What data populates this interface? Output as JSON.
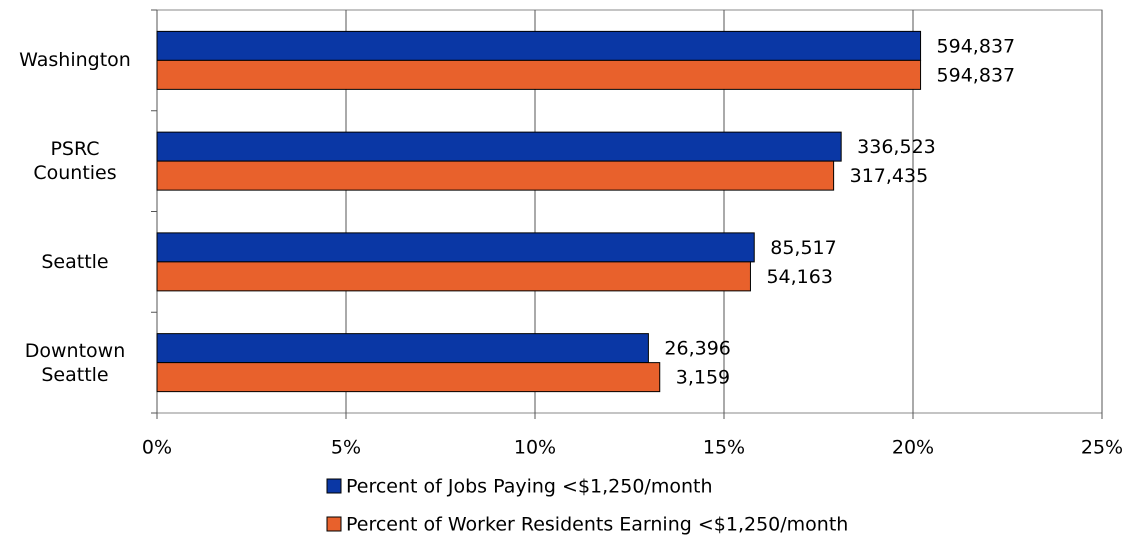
{
  "chart_data": {
    "type": "hbar",
    "categories": [
      "Washington",
      "PSRC Counties",
      "Seattle",
      "Downtown Seattle"
    ],
    "series": [
      {
        "name": "Percent of Jobs Paying <$1,250/month",
        "color": "#0a37a5",
        "values": [
          20.2,
          18.1,
          15.8,
          13.0
        ],
        "labels": [
          "594,837",
          "336,523",
          "85,517",
          "26,396"
        ]
      },
      {
        "name": "Percent of Worker Residents Earning <$1,250/month",
        "color": "#e8612c",
        "values": [
          20.2,
          17.9,
          15.7,
          13.3
        ],
        "labels": [
          "594,837",
          "317,435",
          "54,163",
          "3,159"
        ]
      }
    ],
    "xlim": [
      0,
      25
    ],
    "xticks": [
      {
        "value": 0,
        "label": "0%"
      },
      {
        "value": 5,
        "label": "5%"
      },
      {
        "value": 10,
        "label": "10%"
      },
      {
        "value": 15,
        "label": "15%"
      },
      {
        "value": 20,
        "label": "20%"
      },
      {
        "value": 25,
        "label": "25%"
      }
    ],
    "grid": true
  }
}
